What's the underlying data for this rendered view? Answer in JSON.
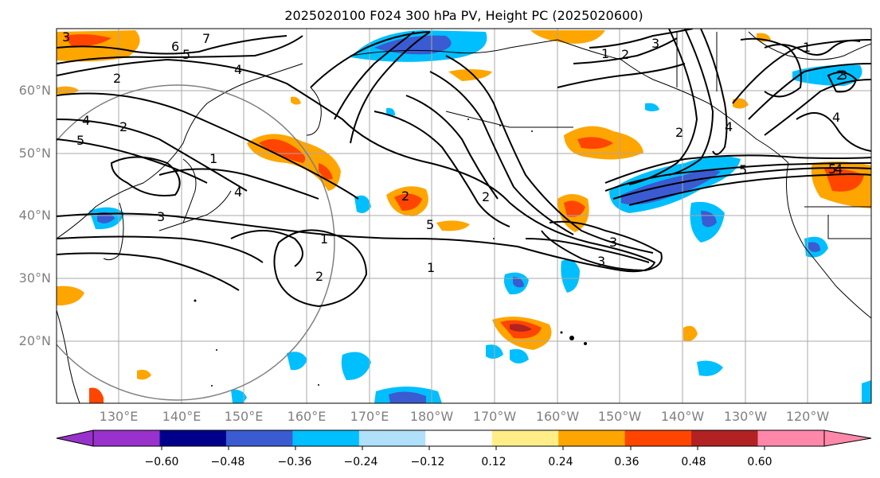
{
  "title": "2025020100 F024 300 hPa PV, Height PC (2025020600)",
  "lat_labels": [
    "60°N",
    "50°N",
    "40°N",
    "30°N",
    "20°N"
  ],
  "lon_labels": [
    "130°E",
    "140°E",
    "150°E",
    "160°E",
    "170°E",
    "180°W",
    "170°W",
    "160°W",
    "150°W",
    "140°W",
    "130°W",
    "120°W"
  ],
  "colorbar": {
    "colors": [
      "#9932cc",
      "#00008b",
      "#3a5bd1",
      "#00bfff",
      "#b0e0fa",
      "#ffffff",
      "#ffee88",
      "#ffa500",
      "#ff4500",
      "#b22222",
      "#ff88aa"
    ],
    "labels": [
      "−0.60",
      "−0.48",
      "−0.36",
      "−0.24",
      "−0.12",
      "0.12",
      "0.24",
      "0.36",
      "0.48",
      "0.60"
    ]
  },
  "contour_labels": [
    "6",
    "7",
    "5",
    "4",
    "3",
    "2",
    "1",
    "2",
    "3",
    "4",
    "5",
    "2",
    "1",
    "5",
    "3",
    "1",
    "2",
    "3",
    "4",
    "2",
    "3",
    "1",
    "2",
    "5",
    "2",
    "1",
    "2",
    "4",
    "4",
    "3",
    "4",
    "5"
  ]
}
